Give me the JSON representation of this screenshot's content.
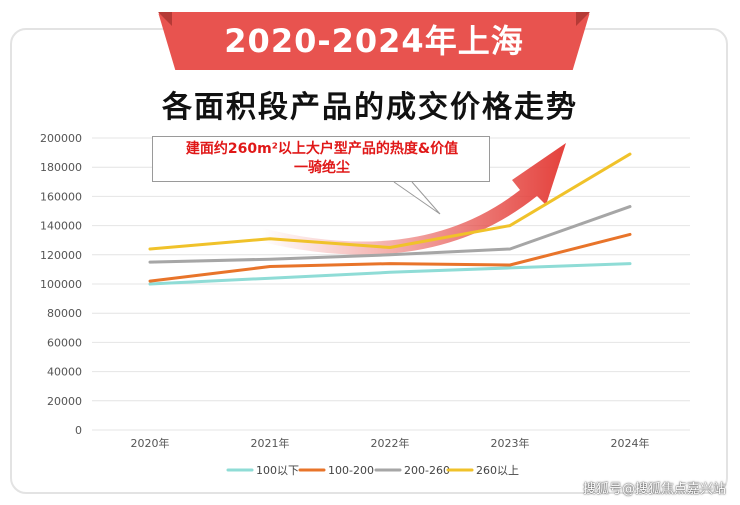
{
  "banner": {
    "text": "2020-2024年上海"
  },
  "title": "各面积段产品的成交价格走势",
  "callout": {
    "line1": "建面约260m²以上大户型产品的热度&价值",
    "line2": "一骑绝尘"
  },
  "watermark": "搜狐号@搜狐焦点嘉兴站",
  "colors": {
    "banner": "#e8534f",
    "arrow": "#e4413c",
    "callout_text": "#e01818"
  },
  "chart_data": {
    "type": "line",
    "title": "各面积段产品的成交价格走势",
    "categories": [
      "2020年",
      "2021年",
      "2022年",
      "2023年",
      "2024年"
    ],
    "ylim": [
      0,
      200000
    ],
    "yticks": [
      0,
      20000,
      40000,
      60000,
      80000,
      100000,
      120000,
      140000,
      160000,
      180000,
      200000
    ],
    "grid": true,
    "legend_position": "bottom",
    "series": [
      {
        "name": "100以下",
        "color": "#8fdcd6",
        "values": [
          100000,
          104000,
          108000,
          111000,
          114000
        ]
      },
      {
        "name": "100-200",
        "color": "#e8742a",
        "values": [
          102000,
          112000,
          114000,
          113000,
          134000
        ]
      },
      {
        "name": "200-260",
        "color": "#a6a6a6",
        "values": [
          115000,
          117000,
          120000,
          124000,
          153000
        ]
      },
      {
        "name": "260以上",
        "color": "#f0c22a",
        "values": [
          124000,
          131000,
          125000,
          140000,
          189000
        ]
      }
    ]
  }
}
